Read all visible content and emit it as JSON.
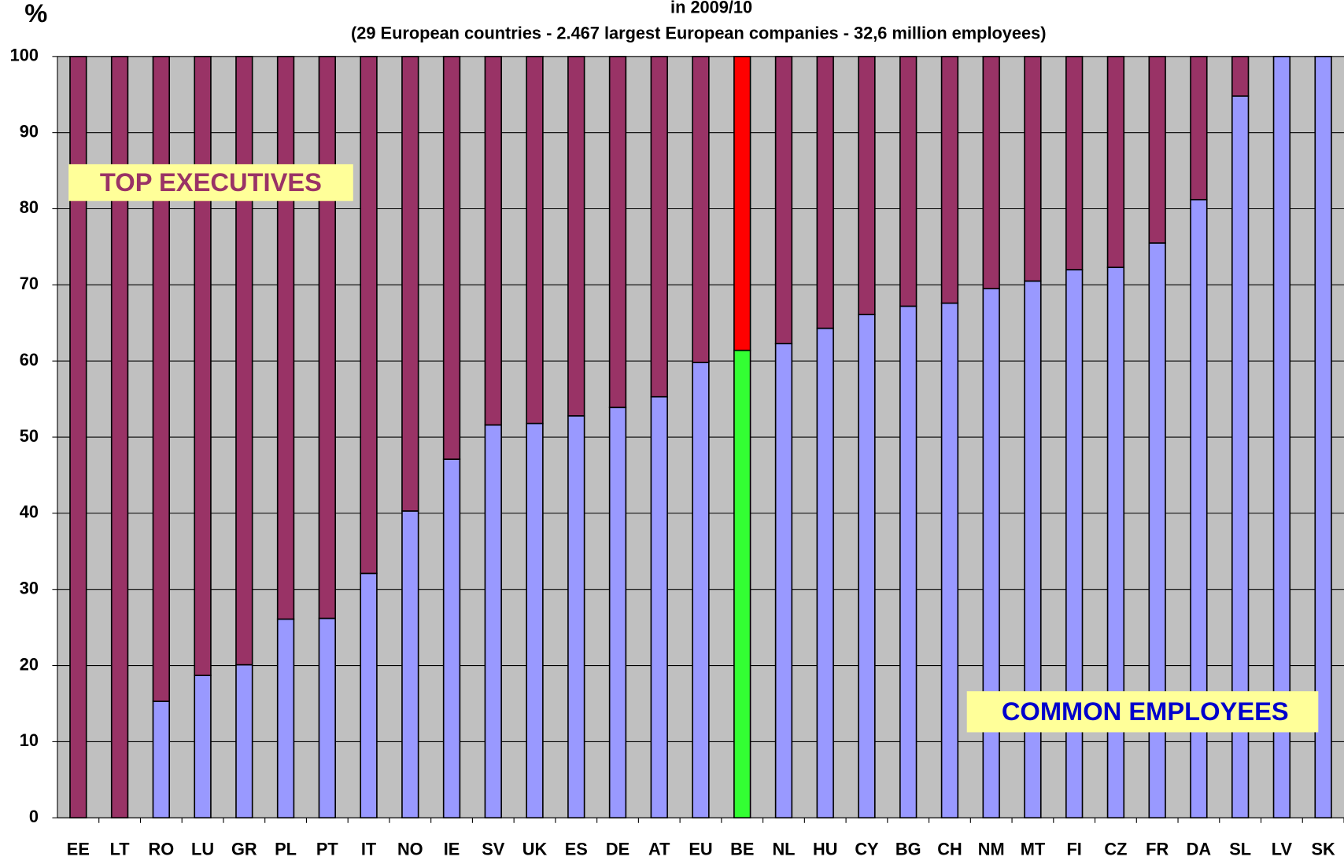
{
  "chart_data": {
    "type": "stacked_bar",
    "title": "in 2009/10",
    "subtitle": "(29 European countries - 2.467 largest European companies - 32,6 million employees)",
    "y_label": "%",
    "categories": [
      "EE",
      "LT",
      "RO",
      "LU",
      "GR",
      "PL",
      "PT",
      "IT",
      "NO",
      "IE",
      "SV",
      "UK",
      "ES",
      "DE",
      "AT",
      "EU",
      "BE",
      "NL",
      "HU",
      "CY",
      "BG",
      "CH",
      "NM",
      "MT",
      "FI",
      "CZ",
      "FR",
      "DA",
      "SL",
      "LV",
      "SK"
    ],
    "series": [
      {
        "name": "COMMON EMPLOYEES",
        "color": "#9999ff",
        "label_color": "#0000cc",
        "values": [
          0,
          0,
          15.3,
          18.7,
          20.1,
          26.1,
          26.2,
          32.1,
          40.3,
          47.1,
          51.6,
          51.8,
          52.8,
          53.9,
          55.3,
          59.8,
          61.4,
          62.3,
          64.3,
          66.1,
          67.2,
          67.6,
          69.5,
          70.5,
          72.0,
          72.3,
          75.5,
          81.2,
          94.8,
          100,
          100
        ],
        "colors": [
          "#9999ff",
          "#9999ff",
          "#9999ff",
          "#9999ff",
          "#9999ff",
          "#9999ff",
          "#9999ff",
          "#9999ff",
          "#9999ff",
          "#9999ff",
          "#9999ff",
          "#9999ff",
          "#9999ff",
          "#9999ff",
          "#9999ff",
          "#9999ff",
          "#33ff33",
          "#9999ff",
          "#9999ff",
          "#9999ff",
          "#9999ff",
          "#9999ff",
          "#9999ff",
          "#9999ff",
          "#9999ff",
          "#9999ff",
          "#9999ff",
          "#9999ff",
          "#9999ff",
          "#9999ff",
          "#9999ff"
        ]
      },
      {
        "name": "TOP EXECUTIVES",
        "color": "#993366",
        "label_color": "#993366",
        "values": [
          100,
          100,
          84.7,
          81.3,
          79.9,
          73.9,
          73.8,
          67.9,
          59.7,
          52.9,
          48.4,
          48.2,
          47.2,
          46.1,
          44.7,
          40.2,
          38.6,
          37.7,
          35.7,
          33.9,
          32.8,
          32.4,
          30.5,
          29.5,
          28.0,
          27.7,
          24.5,
          18.8,
          5.2,
          0,
          0
        ],
        "colors": [
          "#993366",
          "#993366",
          "#993366",
          "#993366",
          "#993366",
          "#993366",
          "#993366",
          "#993366",
          "#993366",
          "#993366",
          "#993366",
          "#993366",
          "#993366",
          "#993366",
          "#993366",
          "#993366",
          "#ff0000",
          "#993366",
          "#993366",
          "#993366",
          "#993366",
          "#993366",
          "#993366",
          "#993366",
          "#993366",
          "#993366",
          "#993366",
          "#993366",
          "#993366",
          "#993366",
          "#993366"
        ]
      }
    ],
    "ylim": [
      0,
      100
    ],
    "yticks": [
      0,
      10,
      20,
      30,
      40,
      50,
      60,
      70,
      80,
      90,
      100
    ],
    "grid": true
  }
}
